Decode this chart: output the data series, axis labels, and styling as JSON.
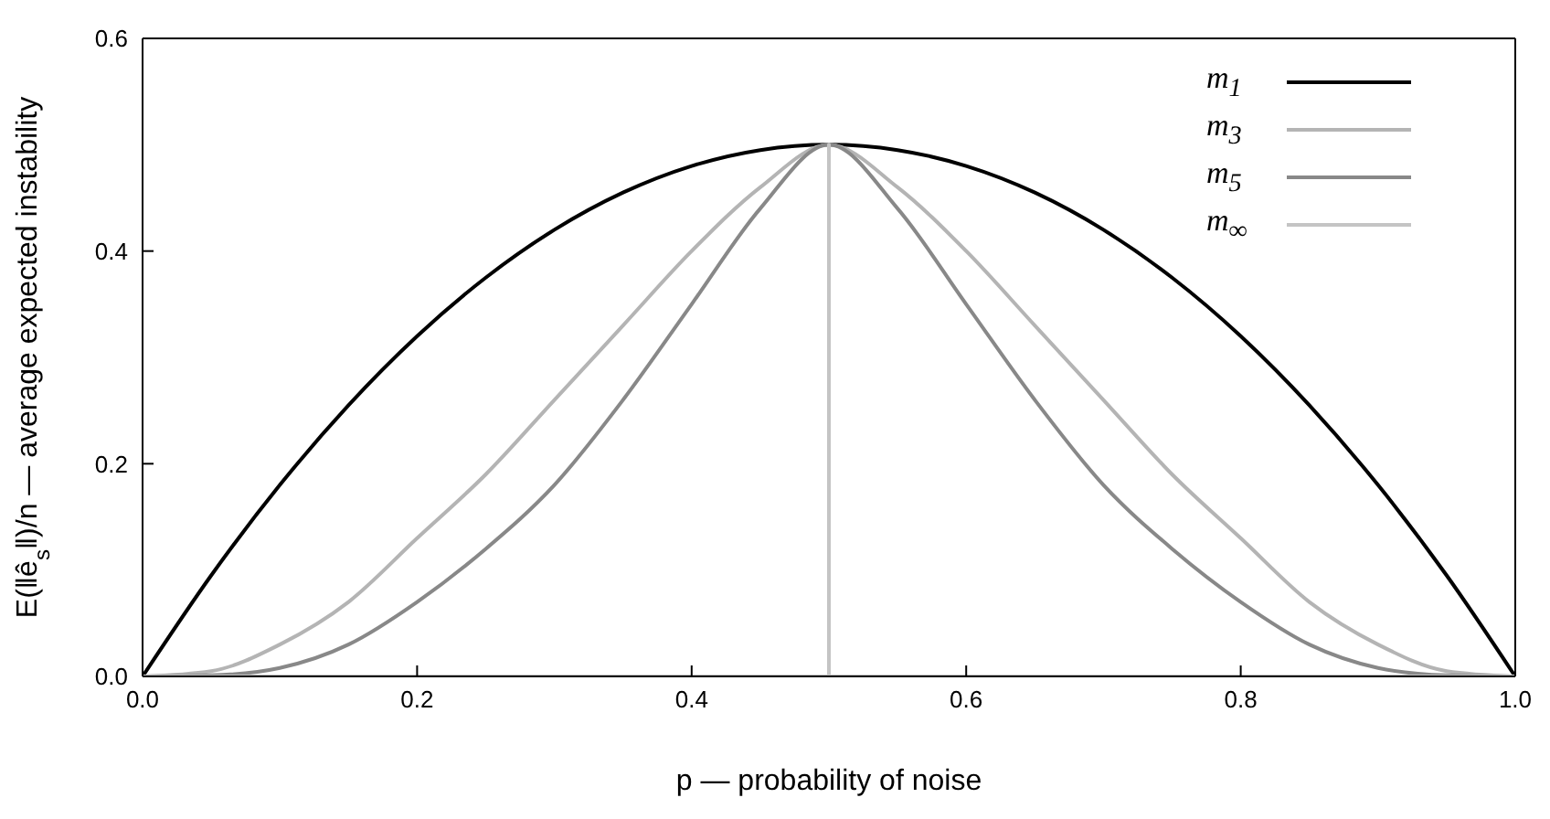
{
  "chart_data": {
    "type": "line",
    "xlabel": "p — probability of noise",
    "ylabel": "E(‖ê$_{s}$‖)/n  — average expected instability",
    "x": [
      0,
      0.05,
      0.1,
      0.15,
      0.2,
      0.25,
      0.3,
      0.35,
      0.4,
      0.45,
      0.5,
      0.55,
      0.6,
      0.65,
      0.7,
      0.75,
      0.8,
      0.85,
      0.9,
      0.95,
      1
    ],
    "series": [
      {
        "name": "m$_{1}$",
        "color": "#000000",
        "values": [
          0,
          0.095,
          0.18,
          0.255,
          0.32,
          0.375,
          0.42,
          0.455,
          0.48,
          0.495,
          0.5,
          0.495,
          0.48,
          0.455,
          0.42,
          0.375,
          0.32,
          0.255,
          0.18,
          0.095,
          0
        ]
      },
      {
        "name": "m$_{3}$",
        "color": "#b4b4b4",
        "values": [
          0,
          0.005,
          0.03,
          0.07,
          0.13,
          0.19,
          0.26,
          0.33,
          0.4,
          0.46,
          0.5,
          0.46,
          0.4,
          0.33,
          0.26,
          0.19,
          0.13,
          0.07,
          0.03,
          0.005,
          0
        ]
      },
      {
        "name": "m$_{5}$",
        "color": "#888888",
        "values": [
          0,
          0.001,
          0.008,
          0.03,
          0.07,
          0.12,
          0.18,
          0.26,
          0.35,
          0.44,
          0.5,
          0.44,
          0.35,
          0.26,
          0.18,
          0.12,
          0.07,
          0.03,
          0.008,
          0.001,
          0
        ]
      },
      {
        "name": "m$_{∞}$",
        "color": "#c4c4c4",
        "x": [
          0,
          0.5,
          0.5,
          0.5,
          1
        ],
        "values": [
          0,
          0,
          0.5,
          0,
          0
        ]
      }
    ],
    "xlim": [
      0,
      1
    ],
    "xticks": [
      {
        "value": 0,
        "label": "0.0"
      },
      0.2,
      0.4,
      0.6,
      0.8,
      {
        "value": 1,
        "label": "1.0"
      }
    ],
    "ylim": [
      0,
      0.6
    ],
    "yticks": [
      {
        "value": 0,
        "label": "0.0"
      },
      0.2,
      0.4,
      0.6
    ],
    "legend": "top right",
    "marker": "none",
    "line_style": "solid"
  }
}
